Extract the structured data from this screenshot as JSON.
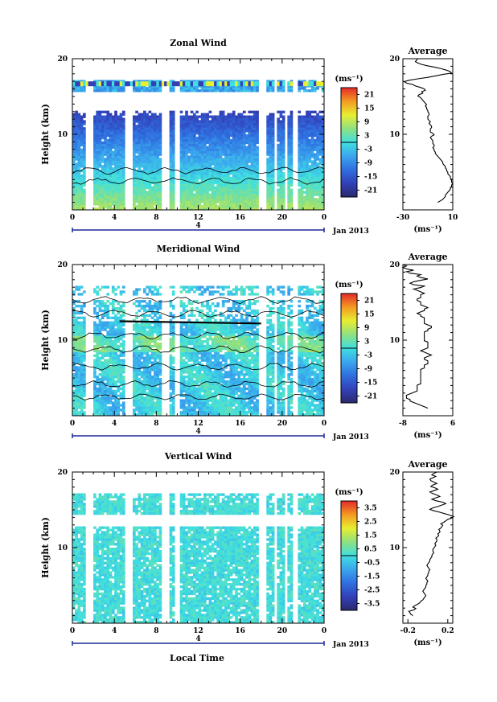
{
  "xlabel": "Local Time",
  "chart_data": [
    {
      "type": "heatmap",
      "title": "Zonal Wind",
      "ylabel": "Height (km)",
      "xlabel": "Local Time",
      "x_ticks": [
        "0",
        "4",
        "8",
        "12",
        "16",
        "20",
        "0"
      ],
      "xlim": [
        0,
        24
      ],
      "y_ticks": [
        "10",
        "20"
      ],
      "ylim": [
        0,
        20
      ],
      "date_label": "4",
      "month_label": "Jan 2013",
      "colorbar": {
        "unit_label": "(ms⁻¹)",
        "ticks": [
          "21",
          "15",
          "9",
          "3",
          "-3",
          "-9",
          "-15",
          "-21"
        ],
        "range": [
          -24,
          24
        ]
      },
      "profile_values": [
        -2,
        0,
        2,
        3,
        4,
        4,
        5,
        6,
        7,
        8,
        8,
        9,
        9,
        10,
        9,
        9,
        9,
        8,
        8,
        7,
        6,
        6,
        5,
        5,
        4,
        4,
        3,
        2,
        2,
        1,
        0,
        -1,
        -2,
        -3,
        -4,
        -4,
        -5,
        -5,
        -6,
        -5,
        -5,
        -6,
        -6,
        -6,
        -7,
        -8,
        -7,
        -5,
        -6,
        -8,
        -8,
        -8,
        -7,
        -7,
        -8,
        -9,
        -8,
        -9,
        -10,
        -10,
        -10,
        -9,
        -9,
        -10,
        -10,
        -11,
        -11,
        -12,
        -11,
        -12,
        -13,
        -14,
        -15,
        -16,
        -18,
        -17,
        -14,
        -15,
        -12,
        -13,
        -16,
        -20,
        -22,
        -27,
        -29,
        -25,
        -18,
        -10,
        -4,
        2,
        9,
        8,
        5,
        1,
        -4,
        -10,
        -15,
        -18,
        -20,
        -19,
        -18
      ],
      "profile_heights": [
        1.0,
        1.19,
        1.38,
        1.57,
        1.76,
        1.95,
        2.14,
        2.33,
        2.52,
        2.71,
        2.9,
        3.09,
        3.28,
        3.47,
        3.66,
        3.85,
        4.04,
        4.23,
        4.42,
        4.61,
        4.8,
        4.99,
        5.18,
        5.37,
        5.56,
        5.75,
        5.94,
        6.13,
        6.32,
        6.51,
        6.7,
        6.89,
        7.08,
        7.27,
        7.46,
        7.65,
        7.84,
        8.03,
        8.22,
        8.41,
        8.6,
        8.79,
        8.98,
        9.17,
        9.36,
        9.55,
        9.74,
        9.93,
        10.12,
        10.31,
        10.5,
        10.69,
        10.88,
        11.07,
        11.26,
        11.45,
        11.64,
        11.83,
        12.02,
        12.21,
        12.4,
        12.59,
        12.78,
        12.97,
        13.16,
        13.35,
        13.54,
        13.73,
        13.92,
        14.11,
        14.3,
        14.49,
        14.68,
        14.87,
        15.06,
        15.25,
        15.44,
        15.63,
        15.82,
        16.01,
        16.2,
        16.39,
        16.58,
        16.77,
        16.96,
        17.15,
        17.34,
        17.53,
        17.72,
        17.91,
        18.1,
        18.29,
        18.48,
        18.67,
        18.86,
        19.05,
        19.24,
        19.43,
        19.62,
        19.81,
        20.0
      ],
      "profile_title": "Average",
      "profile_xlim": [
        -30,
        10
      ],
      "profile_x_ticks": [
        "-30",
        "10"
      ],
      "profile_ylim": [
        0,
        20
      ],
      "profile_y_ticks": [
        "10",
        "20"
      ],
      "profile_xlabel": "(ms⁻¹)"
    },
    {
      "type": "heatmap",
      "title": "Meridional Wind",
      "ylabel": "Height (km)",
      "xlabel": "Local Time",
      "x_ticks": [
        "0",
        "4",
        "8",
        "12",
        "16",
        "20",
        "0"
      ],
      "xlim": [
        0,
        24
      ],
      "y_ticks": [
        "10",
        "20"
      ],
      "ylim": [
        0,
        20
      ],
      "date_label": "4",
      "month_label": "Jan 2013",
      "colorbar": {
        "unit_label": "(ms⁻¹)",
        "ticks": [
          "21",
          "15",
          "9",
          "3",
          "-3",
          "-9",
          "-15",
          "-21"
        ],
        "range": [
          -24,
          24
        ]
      },
      "profile_values": [
        -1,
        -2,
        -3,
        -4,
        -5,
        -6,
        -6,
        -7,
        -7,
        -7,
        -6,
        -5,
        -4,
        -4,
        -4,
        -4,
        -4,
        -3,
        -3,
        -3,
        -3,
        -3,
        -3,
        -3,
        -3,
        -3,
        -3,
        -3,
        -2,
        -2,
        -2,
        -1,
        -1,
        -1,
        -2,
        -2,
        -1,
        0,
        -1,
        -2,
        -3,
        -2,
        -1,
        -1,
        -1,
        -1,
        -1,
        -2,
        -2,
        -2,
        -2,
        -2,
        -2,
        -2,
        -1,
        -1,
        0,
        0,
        -1,
        -2,
        -2,
        -2,
        -2,
        -2,
        -3,
        -3,
        -4,
        -3,
        -2,
        -2,
        -1,
        -2,
        -3,
        -3,
        -3,
        -4,
        -4,
        -3,
        -3,
        -3,
        -2,
        -3,
        -4,
        -5,
        -3,
        -2,
        -5,
        -6,
        -5,
        -3,
        -1,
        -3,
        -4,
        -3,
        -6,
        -7,
        -5,
        -7,
        -8,
        -7,
        -8
      ],
      "profile_heights": [
        1.0,
        1.19,
        1.38,
        1.57,
        1.76,
        1.95,
        2.14,
        2.33,
        2.52,
        2.71,
        2.9,
        3.09,
        3.28,
        3.47,
        3.66,
        3.85,
        4.04,
        4.23,
        4.42,
        4.61,
        4.8,
        4.99,
        5.18,
        5.37,
        5.56,
        5.75,
        5.94,
        6.13,
        6.32,
        6.51,
        6.7,
        6.89,
        7.08,
        7.27,
        7.46,
        7.65,
        7.84,
        8.03,
        8.22,
        8.41,
        8.6,
        8.79,
        8.98,
        9.17,
        9.36,
        9.55,
        9.74,
        9.93,
        10.12,
        10.31,
        10.5,
        10.69,
        10.88,
        11.07,
        11.26,
        11.45,
        11.64,
        11.83,
        12.02,
        12.21,
        12.4,
        12.59,
        12.78,
        12.97,
        13.16,
        13.35,
        13.54,
        13.73,
        13.92,
        14.11,
        14.3,
        14.49,
        14.68,
        14.87,
        15.06,
        15.25,
        15.44,
        15.63,
        15.82,
        16.01,
        16.2,
        16.39,
        16.58,
        16.77,
        16.96,
        17.15,
        17.34,
        17.53,
        17.72,
        17.91,
        18.1,
        18.29,
        18.48,
        18.67,
        18.86,
        19.05,
        19.24,
        19.43,
        19.62,
        19.81,
        20.0
      ],
      "profile_title": "Average",
      "profile_xlim": [
        -8,
        6
      ],
      "profile_x_ticks": [
        "-8",
        "6"
      ],
      "profile_ylim": [
        0,
        20
      ],
      "profile_y_ticks": [
        "10",
        "20"
      ],
      "profile_xlabel": "(ms⁻¹)"
    },
    {
      "type": "heatmap",
      "title": "Vertical Wind",
      "ylabel": "Height (km)",
      "xlabel": "Local Time",
      "x_ticks": [
        "0",
        "4",
        "8",
        "12",
        "16",
        "20",
        "0"
      ],
      "xlim": [
        0,
        24
      ],
      "y_ticks": [
        "10",
        "20"
      ],
      "ylim": [
        0,
        20
      ],
      "date_label": "4",
      "month_label": "Jan 2013",
      "colorbar": {
        "unit_label": "(ms⁻¹)",
        "ticks": [
          "3.5",
          "2.5",
          "1.5",
          "0.5",
          "-0.5",
          "-1.5",
          "-2.5",
          "-3.5"
        ],
        "range": [
          -4,
          4
        ]
      },
      "profile_values": [
        -0.15,
        -0.17,
        -0.18,
        -0.19,
        -0.14,
        -0.12,
        -0.15,
        -0.13,
        -0.1,
        -0.08,
        -0.07,
        -0.05,
        -0.04,
        -0.03,
        -0.02,
        -0.03,
        -0.04,
        -0.05,
        -0.04,
        -0.03,
        -0.02,
        -0.02,
        -0.01,
        -0.01,
        0.0,
        -0.01,
        -0.02,
        -0.01,
        0.0,
        0.0,
        0.01,
        0.01,
        0.02,
        0.01,
        0.0,
        -0.01,
        0.0,
        0.01,
        0.02,
        0.02,
        0.03,
        0.04,
        0.04,
        0.05,
        0.06,
        0.05,
        0.05,
        0.06,
        0.07,
        0.08,
        0.07,
        0.08,
        0.09,
        0.09,
        0.08,
        0.1,
        0.11,
        0.1,
        0.12,
        0.12,
        0.11,
        0.13,
        0.14,
        0.15,
        0.13,
        0.16,
        0.18,
        0.2,
        0.24,
        0.26,
        0.22,
        0.17,
        0.12,
        0.06,
        0.02,
        0.05,
        0.1,
        0.14,
        0.18,
        0.15,
        0.08,
        0.04,
        0.08,
        0.12,
        0.09,
        0.05,
        0.02,
        0.06,
        0.1,
        0.07,
        0.03,
        0.05,
        0.09,
        0.06,
        0.03,
        0.02,
        0.05,
        0.08,
        0.04,
        0.06,
        0.09
      ],
      "profile_heights": [
        1.0,
        1.19,
        1.38,
        1.57,
        1.76,
        1.95,
        2.14,
        2.33,
        2.52,
        2.71,
        2.9,
        3.09,
        3.28,
        3.47,
        3.66,
        3.85,
        4.04,
        4.23,
        4.42,
        4.61,
        4.8,
        4.99,
        5.18,
        5.37,
        5.56,
        5.75,
        5.94,
        6.13,
        6.32,
        6.51,
        6.7,
        6.89,
        7.08,
        7.27,
        7.46,
        7.65,
        7.84,
        8.03,
        8.22,
        8.41,
        8.6,
        8.79,
        8.98,
        9.17,
        9.36,
        9.55,
        9.74,
        9.93,
        10.12,
        10.31,
        10.5,
        10.69,
        10.88,
        11.07,
        11.26,
        11.45,
        11.64,
        11.83,
        12.02,
        12.21,
        12.4,
        12.59,
        12.78,
        12.97,
        13.16,
        13.35,
        13.54,
        13.73,
        13.92,
        14.11,
        14.3,
        14.49,
        14.68,
        14.87,
        15.06,
        15.25,
        15.44,
        15.63,
        15.82,
        16.01,
        16.2,
        16.39,
        16.58,
        16.77,
        16.96,
        17.15,
        17.34,
        17.53,
        17.72,
        17.91,
        18.1,
        18.29,
        18.48,
        18.67,
        18.86,
        19.05,
        19.24,
        19.43,
        19.62,
        19.81,
        20.0
      ],
      "profile_title": "Average",
      "profile_xlim": [
        -0.25,
        0.25
      ],
      "profile_x_ticks": [
        "-0.2",
        "0.2"
      ],
      "profile_ylim": [
        0,
        20
      ],
      "profile_y_ticks": [
        "10",
        "20"
      ],
      "profile_xlabel": "(ms⁻¹)"
    }
  ]
}
